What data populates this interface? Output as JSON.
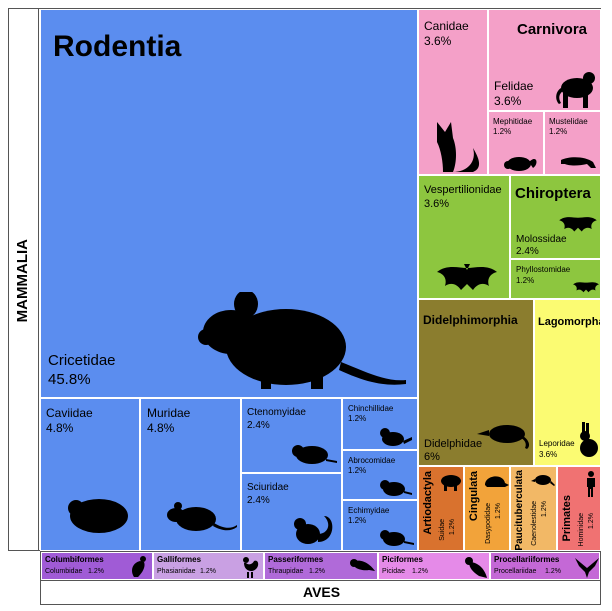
{
  "chart_data": {
    "type": "treemap",
    "groups": [
      {
        "class": "MAMMALIA",
        "orders": [
          {
            "order": "Rodentia",
            "families": [
              {
                "name": "Cricetidae",
                "pct": "45.8%",
                "value": 45.8
              },
              {
                "name": "Caviidae",
                "pct": "4.8%",
                "value": 4.8
              },
              {
                "name": "Muridae",
                "pct": "4.8%",
                "value": 4.8
              },
              {
                "name": "Ctenomyidae",
                "pct": "2.4%",
                "value": 2.4
              },
              {
                "name": "Sciuridae",
                "pct": "2.4%",
                "value": 2.4
              },
              {
                "name": "Chinchillidae",
                "pct": "1.2%",
                "value": 1.2
              },
              {
                "name": "Abrocomidae",
                "pct": "1.2%",
                "value": 1.2
              },
              {
                "name": "Echimyidae",
                "pct": "1.2%",
                "value": 1.2
              }
            ]
          },
          {
            "order": "Carnivora",
            "families": [
              {
                "name": "Canidae",
                "pct": "3.6%",
                "value": 3.6
              },
              {
                "name": "Felidae",
                "pct": "3.6%",
                "value": 3.6
              },
              {
                "name": "Mephitidae",
                "pct": "1.2%",
                "value": 1.2
              },
              {
                "name": "Mustelidae",
                "pct": "1.2%",
                "value": 1.2
              }
            ]
          },
          {
            "order": "Chiroptera",
            "families": [
              {
                "name": "Vespertilionidae",
                "pct": "3.6%",
                "value": 3.6
              },
              {
                "name": "Molossidae",
                "pct": "2.4%",
                "value": 2.4
              },
              {
                "name": "Phyllostomidae",
                "pct": "1.2%",
                "value": 1.2
              }
            ]
          },
          {
            "order": "Didelphimorphia",
            "families": [
              {
                "name": "Didelphidae",
                "pct": "6%",
                "value": 6
              }
            ]
          },
          {
            "order": "Lagomorpha",
            "families": [
              {
                "name": "Leporidae",
                "pct": "3.6%",
                "value": 3.6
              }
            ]
          },
          {
            "order": "Artiodactyla",
            "families": [
              {
                "name": "Suidae",
                "pct": "1.2%",
                "value": 1.2
              }
            ]
          },
          {
            "order": "Cingulata",
            "families": [
              {
                "name": "Dasypodidae",
                "pct": "1.2%",
                "value": 1.2
              }
            ]
          },
          {
            "order": "Paucituberculata",
            "families": [
              {
                "name": "Caenolestidae",
                "pct": "1.2%",
                "value": 1.2
              }
            ]
          },
          {
            "order": "Primates",
            "families": [
              {
                "name": "Hominidae",
                "pct": "1.2%",
                "value": 1.2
              }
            ]
          }
        ]
      },
      {
        "class": "AVES",
        "orders": [
          {
            "order": "Columbiformes",
            "families": [
              {
                "name": "Columbidae",
                "pct": "1.2%",
                "value": 1.2
              }
            ]
          },
          {
            "order": "Galliformes",
            "families": [
              {
                "name": "Phasianidae",
                "pct": "1.2%",
                "value": 1.2
              }
            ]
          },
          {
            "order": "Passeriformes",
            "families": [
              {
                "name": "Thraupidae",
                "pct": "1.2%",
                "value": 1.2
              }
            ]
          },
          {
            "order": "Piciformes",
            "families": [
              {
                "name": "Picidae",
                "pct": "1.2%",
                "value": 1.2
              }
            ]
          },
          {
            "order": "Procellariiformes",
            "families": [
              {
                "name": "Procellariidae",
                "pct": "1.2%",
                "value": 1.2
              }
            ]
          }
        ]
      }
    ],
    "colors": {
      "Rodentia": "#5b8def",
      "Carnivora": "#f4a0c8",
      "Chiroptera": "#8dc63f",
      "Didelphimorphia": "#8b7d2e",
      "Lagomorpha": "#fbfb72",
      "Artiodactyla": "#d9722e",
      "Cingulata": "#f2a33a",
      "Paucituberculata": "#f2b866",
      "Primates": "#f07272",
      "Columbiformes": "#a05bd6",
      "Galliformes": "#c9a0e3",
      "Passeriformes": "#b06ad9",
      "Piciformes": "#e58ae8",
      "Procellariiformes": "#c468d6"
    },
    "icons": {
      "Cricetidae": "mouse-icon",
      "Caviidae": "guinea-pig-icon",
      "Muridae": "rat-icon",
      "Ctenomyidae": "tuco-tuco-icon",
      "Sciuridae": "squirrel-icon",
      "Chinchillidae": "chinchilla-icon",
      "Abrocomidae": "chinchilla-rat-icon",
      "Echimyidae": "spiny-rat-icon",
      "Canidae": "fox-icon",
      "Felidae": "puma-icon",
      "Mephitidae": "skunk-icon",
      "Mustelidae": "ferret-icon",
      "Vespertilionidae": "bat-icon",
      "Molossidae": "bat-icon",
      "Phyllostomidae": "bat-icon",
      "Didelphidae": "opossum-icon",
      "Leporidae": "rabbit-icon",
      "Suidae": "boar-icon",
      "Dasypodidae": "armadillo-icon",
      "Caenolestidae": "shrew-opossum-icon",
      "Hominidae": "human-icon",
      "Columbidae": "dove-icon",
      "Phasianidae": "rooster-icon",
      "Thraupidae": "tanager-icon",
      "Picidae": "woodpecker-icon",
      "Procellariidae": "petrel-icon"
    }
  }
}
